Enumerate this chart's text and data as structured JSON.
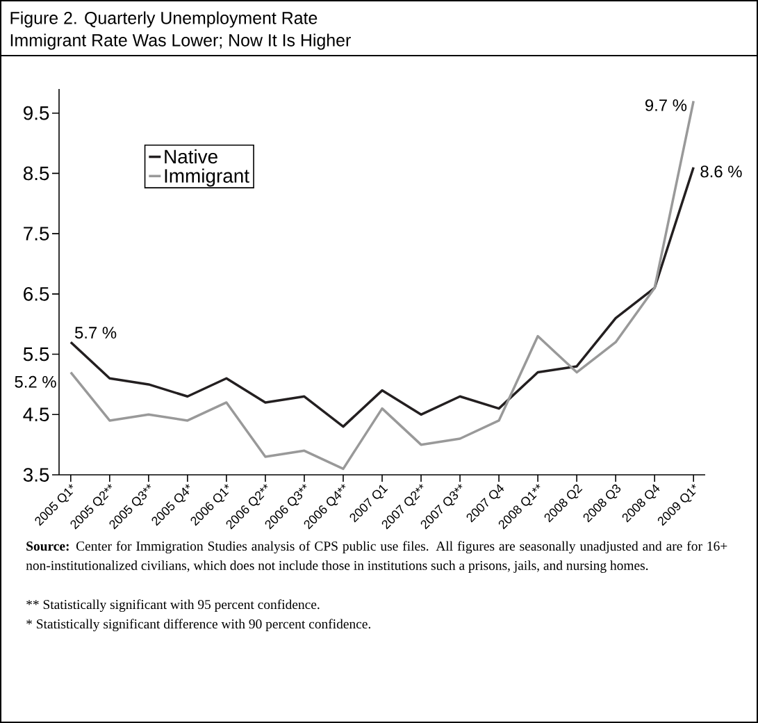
{
  "chart_data": {
    "type": "line",
    "title": "Figure 2. Quarterly Unemployment Rate",
    "subtitle": "Immigrant Rate Was Lower; Now It Is Higher",
    "categories": [
      "2005 Q1*",
      "2005 Q2**",
      "2005 Q3**",
      "2005 Q4*",
      "2006 Q1*",
      "2006 Q2**",
      "2006 Q3**",
      "2006 Q4**",
      "2007 Q1",
      "2007 Q2**",
      "2007 Q3**",
      "2007 Q4",
      "2008 Q1**",
      "2008 Q2",
      "2008 Q3",
      "2008 Q4",
      "2009 Q1*"
    ],
    "series": [
      {
        "name": "Native",
        "color": "#231f20",
        "values": [
          5.7,
          5.1,
          5.0,
          4.8,
          5.1,
          4.7,
          4.8,
          4.3,
          4.9,
          4.5,
          4.8,
          4.6,
          5.2,
          5.3,
          6.1,
          6.6,
          8.6
        ]
      },
      {
        "name": "Immigrant",
        "color": "#999999",
        "values": [
          5.2,
          4.4,
          4.5,
          4.4,
          4.7,
          3.8,
          3.9,
          3.6,
          4.6,
          4.0,
          4.1,
          4.4,
          5.8,
          5.2,
          5.7,
          6.6,
          9.7
        ]
      }
    ],
    "ylim": [
      3.5,
      9.9
    ],
    "yticks": [
      3.5,
      4.5,
      5.5,
      6.5,
      7.5,
      8.5,
      9.5
    ],
    "legend": "top left",
    "grid": false,
    "marker": "none",
    "line_style": "solid",
    "annotations": [
      {
        "text": "5.7 %",
        "x": "2005 Q1*",
        "y": 5.7
      },
      {
        "text": "5.2 %",
        "x": "2005 Q1*",
        "y": 5.2
      },
      {
        "text": "9.7 %",
        "x": "2009 Q1*",
        "y": 9.7
      },
      {
        "text": "8.6 %",
        "x": "2009 Q1*",
        "y": 8.6
      },
      "**Source:** Center for Immigration Studies analysis of CPS public use files.  All figures are seasonally unadjusted and are for 16+ non-institutionalized civilians, which does not include those in institutions such a prisons, jails, and nursing homes.",
      "** Statistically significant with 95 percent confidence.",
      "* Statistically significant difference with 90 percent confidence."
    ]
  }
}
